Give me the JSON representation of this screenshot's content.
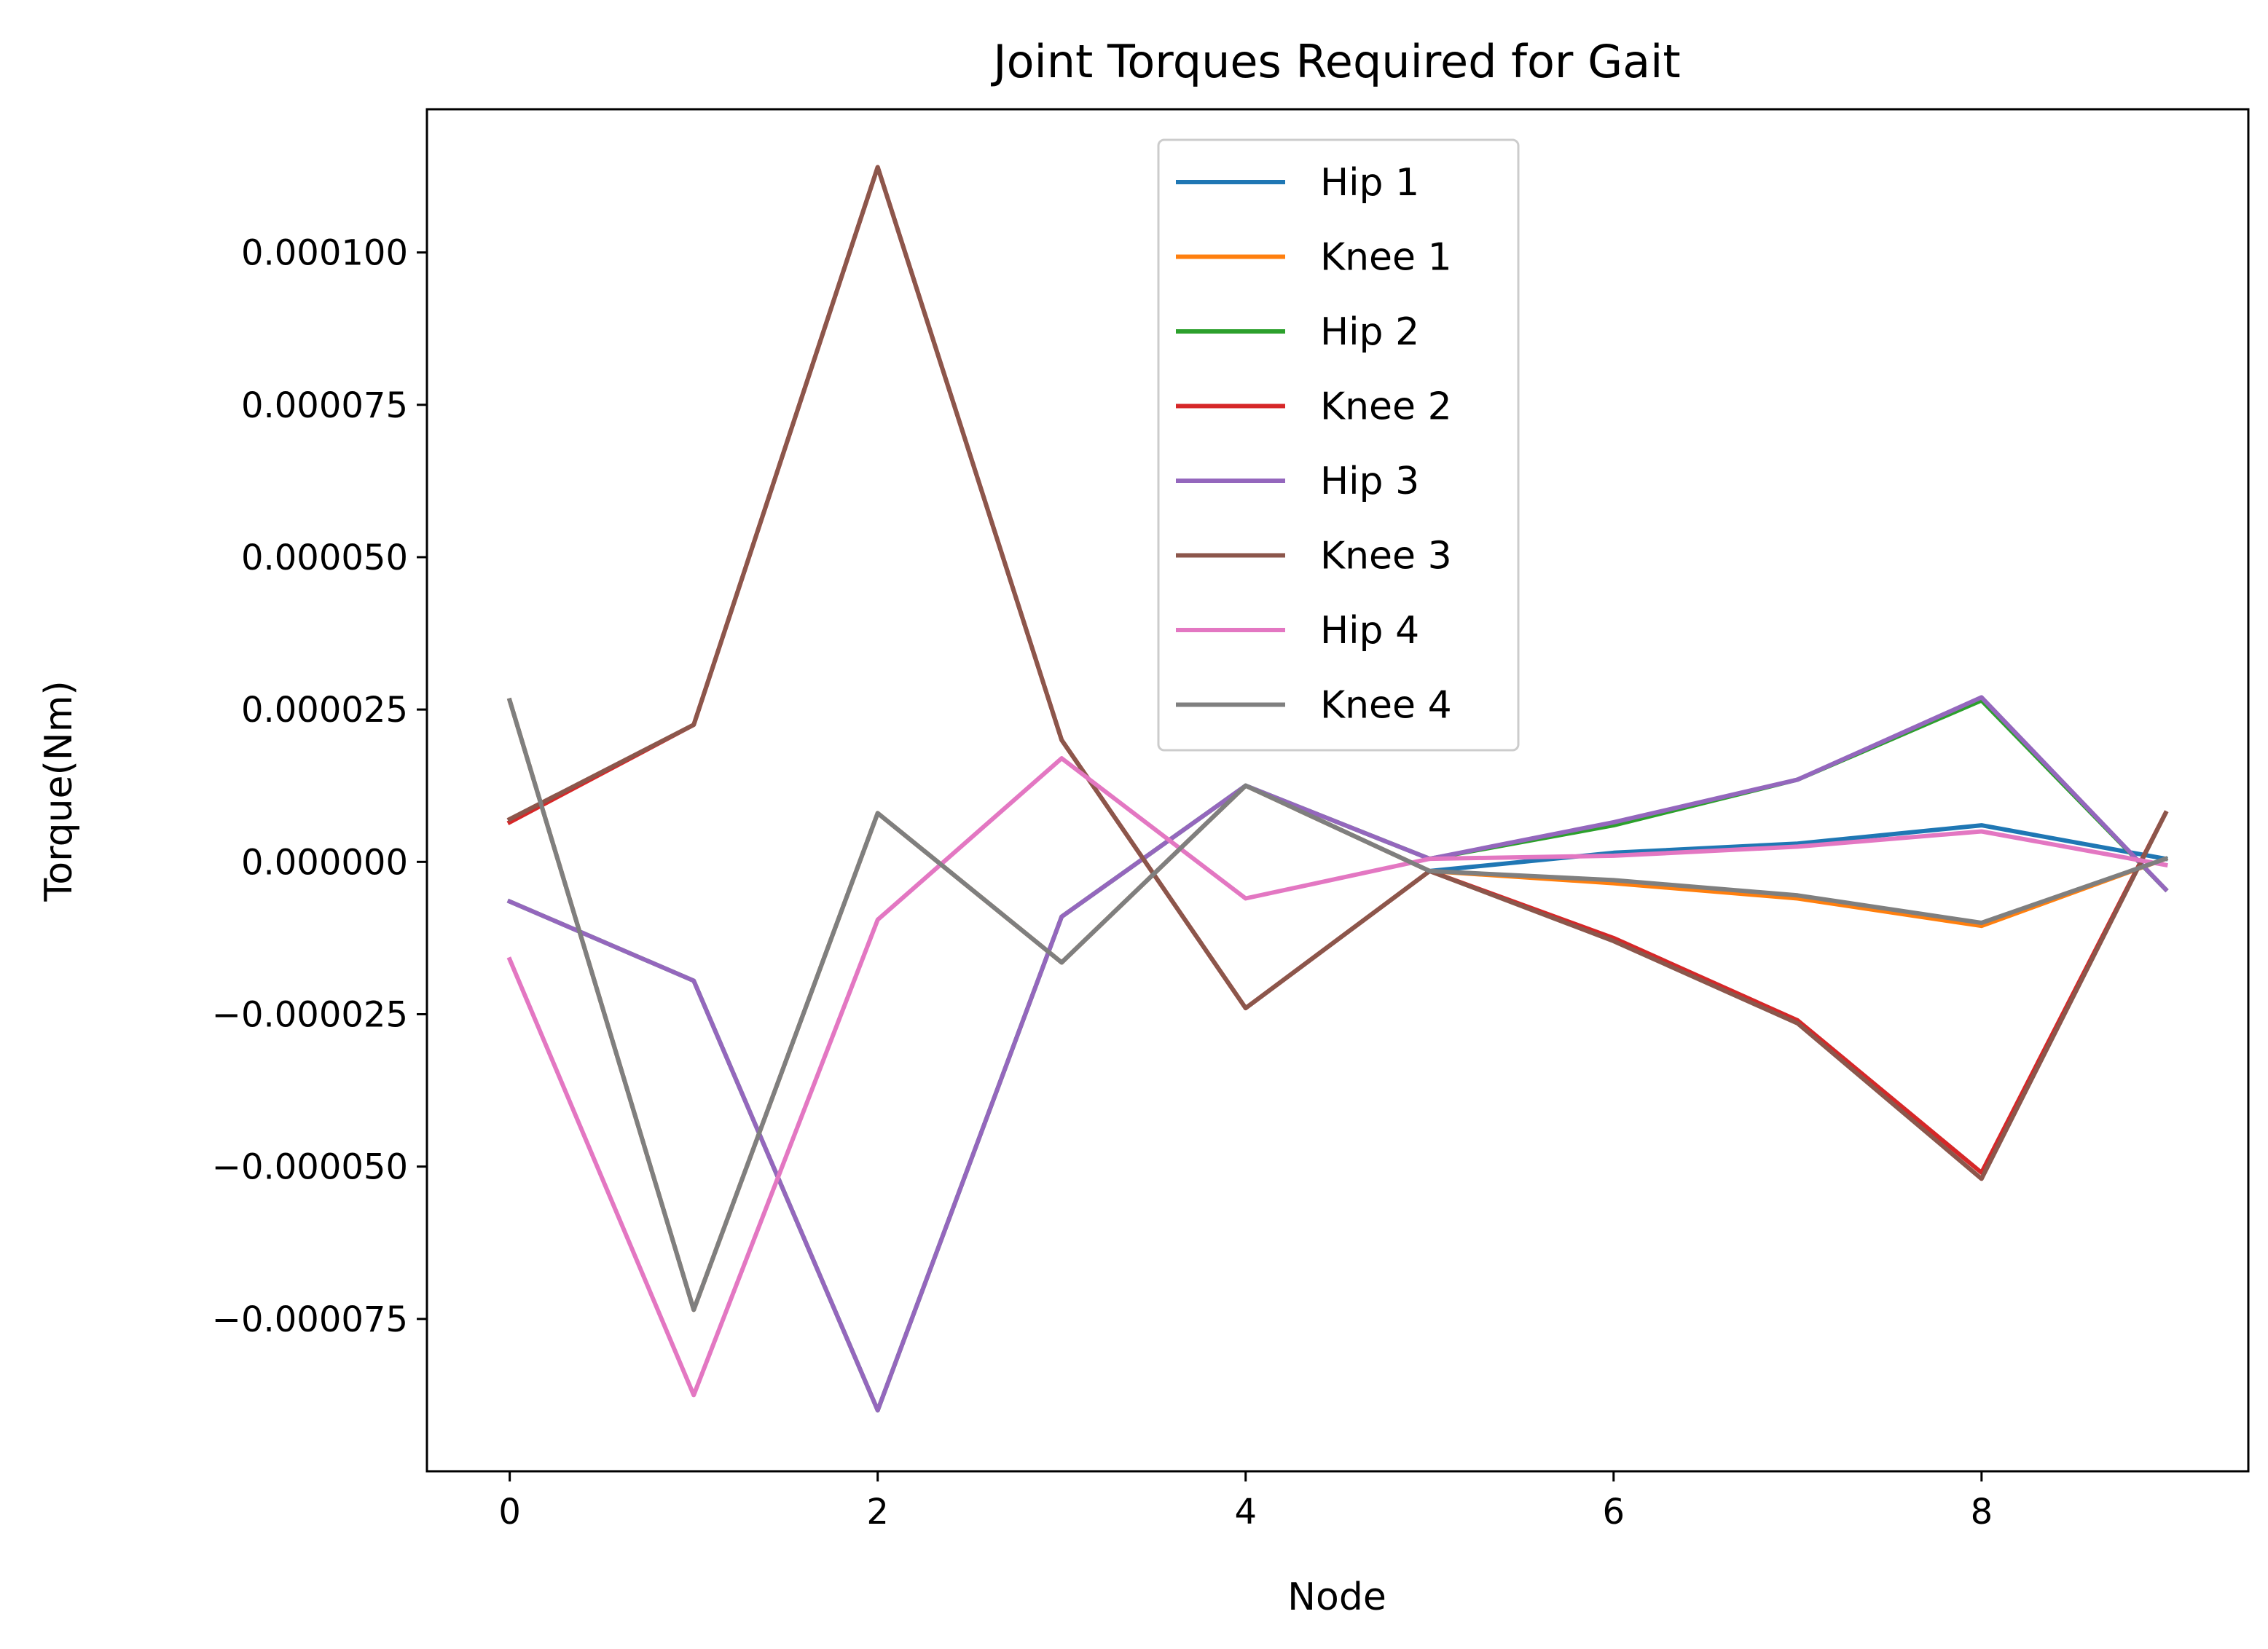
{
  "chart_data": {
    "type": "line",
    "title": "Joint Torques Required for Gait",
    "xlabel": "Node",
    "ylabel": "Torque(Nm)",
    "xlim": [
      -0.45,
      9.45
    ],
    "ylim": [
      -0.0001,
      0.0001235
    ],
    "xticks": [
      0,
      2,
      4,
      6,
      8
    ],
    "xtick_labels": [
      "0",
      "2",
      "4",
      "6",
      "8"
    ],
    "yticks": [
      -7.5e-05,
      -5e-05,
      -2.5e-05,
      0,
      2.5e-05,
      5e-05,
      7.5e-05,
      0.0001
    ],
    "ytick_labels": [
      "−0.000075",
      "−0.000050",
      "−0.000025",
      "0.000000",
      "0.000025",
      "0.000050",
      "0.000075",
      "0.000100"
    ],
    "grid": false,
    "legend_position": "upper center",
    "x": [
      0,
      1,
      2,
      3,
      4,
      5,
      6,
      7,
      8,
      9
    ],
    "series": [
      {
        "name": "Hip 1",
        "color": "#1f77b4",
        "values": [
          2.65e-05,
          -7.35e-05,
          8e-06,
          -1.65e-05,
          1.25e-05,
          -1.5e-06,
          1.5e-06,
          3e-06,
          6e-06,
          5e-07
        ]
      },
      {
        "name": "Knee 1",
        "color": "#ff7f0e",
        "values": [
          2.65e-05,
          -7.35e-05,
          8e-06,
          -1.65e-05,
          1.25e-05,
          -1.5e-06,
          -3.5e-06,
          -6e-06,
          -1.05e-05,
          5e-07
        ]
      },
      {
        "name": "Hip 2",
        "color": "#2ca02c",
        "values": [
          -6.5e-06,
          -1.95e-05,
          -9e-05,
          -9e-06,
          1.25e-05,
          5e-07,
          6e-06,
          1.35e-05,
          2.65e-05,
          -4.5e-06
        ]
      },
      {
        "name": "Knee 2",
        "color": "#d62728",
        "values": [
          6.5e-06,
          2.25e-05,
          0.000114,
          2e-05,
          -2.4e-05,
          -1.5e-06,
          -1.25e-05,
          -2.6e-05,
          -5.1e-05,
          8e-06
        ]
      },
      {
        "name": "Hip 3",
        "color": "#9467bd",
        "values": [
          -6.5e-06,
          -1.95e-05,
          -9e-05,
          -9e-06,
          1.25e-05,
          5e-07,
          6.5e-06,
          1.35e-05,
          2.7e-05,
          -4.5e-06
        ]
      },
      {
        "name": "Knee 3",
        "color": "#8c564b",
        "values": [
          7e-06,
          2.25e-05,
          0.000114,
          2e-05,
          -2.4e-05,
          -1.5e-06,
          -1.3e-05,
          -2.65e-05,
          -5.2e-05,
          8e-06
        ]
      },
      {
        "name": "Hip 4",
        "color": "#e377c2",
        "values": [
          -1.6e-05,
          -8.75e-05,
          -9.5e-06,
          1.7e-05,
          -6e-06,
          5e-07,
          1e-06,
          2.5e-06,
          5e-06,
          -5e-07
        ]
      },
      {
        "name": "Knee 4",
        "color": "#7f7f7f",
        "values": [
          2.65e-05,
          -7.35e-05,
          8e-06,
          -1.65e-05,
          1.25e-05,
          -1.5e-06,
          -3e-06,
          -5.5e-06,
          -1e-05,
          5e-07
        ]
      }
    ]
  }
}
